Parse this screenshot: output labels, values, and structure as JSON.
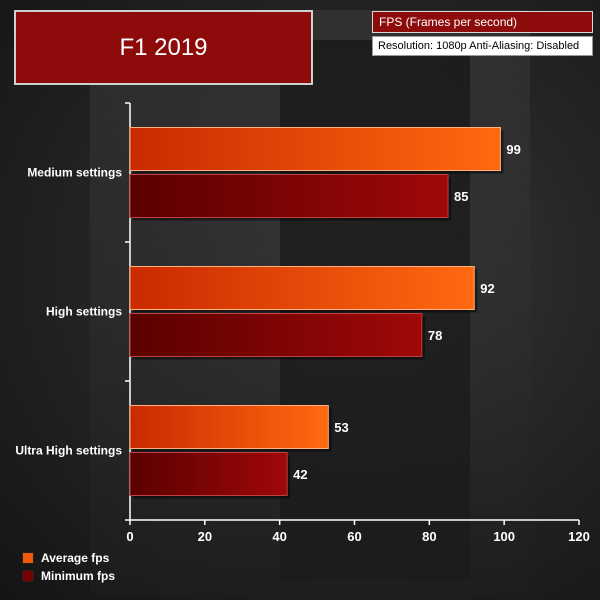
{
  "title": "F1 2019",
  "info": {
    "metric": "FPS (Frames per second)",
    "settings": "Resolution: 1080p Anti-Aliasing: Disabled"
  },
  "colors": {
    "average": "#f25a0a",
    "minimum": "#7a0000"
  },
  "chart_data": {
    "type": "bar",
    "orientation": "horizontal",
    "title": "F1 2019",
    "categories": [
      "Medium settings",
      "High settings",
      "Ultra High settings"
    ],
    "series": [
      {
        "name": "Average fps",
        "values": [
          99,
          92,
          53
        ]
      },
      {
        "name": "Minimum fps",
        "values": [
          85,
          78,
          42
        ]
      }
    ],
    "xlim": [
      0,
      120
    ],
    "xticks": [
      0,
      20,
      40,
      60,
      80,
      100,
      120
    ],
    "xlabel": "",
    "ylabel": "",
    "grid": false,
    "legend": "bottom-left"
  }
}
